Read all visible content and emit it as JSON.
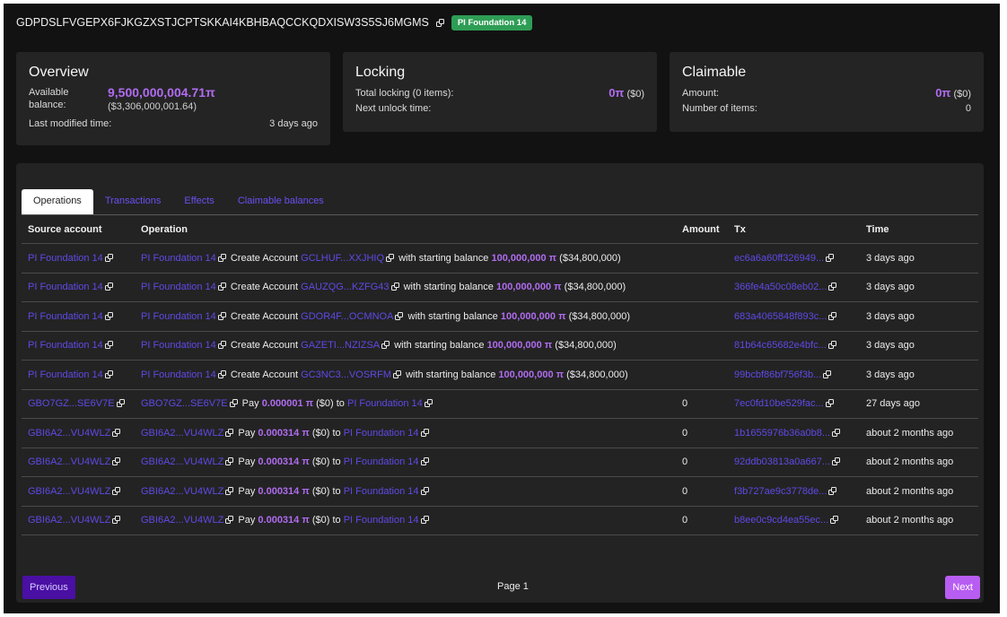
{
  "header": {
    "address": "GDPDSLFVGEPX6FJKGZXSTJCPTSKKAI4KBHBAQCCKQDXISW3S5SJ6MGMS",
    "badge": "PI Foundation 14"
  },
  "overview": {
    "title": "Overview",
    "available_label_1": "Available",
    "available_label_2": "balance:",
    "balance": "9,500,000,004.71π",
    "balance_usd": "($3,306,000,001.64)",
    "last_modified_label": "Last modified time:",
    "last_modified_value": "3 days ago"
  },
  "locking": {
    "title": "Locking",
    "total_label": "Total locking (0 items):",
    "total_value": "0π",
    "total_usd": "($0)",
    "next_unlock_label": "Next unlock time:"
  },
  "claimable": {
    "title": "Claimable",
    "amount_label": "Amount:",
    "amount_value": "0π",
    "amount_usd": "($0)",
    "items_label": "Number of items:",
    "items_value": "0"
  },
  "tabs": [
    "Operations",
    "Transactions",
    "Effects",
    "Claimable balances"
  ],
  "columns": [
    "Source account",
    "Operation",
    "Amount",
    "Tx",
    "Time"
  ],
  "text": {
    "create": "Create Account",
    "with_balance": "with starting balance",
    "pay": "Pay",
    "to": "to"
  },
  "rows": [
    {
      "source": "PI Foundation 14",
      "op_from": "PI Foundation 14",
      "type": "create",
      "target": "GCLHUF...XXJHIQ",
      "pi": "100,000,000 π",
      "usd": "($34,800,000)",
      "amount": "",
      "tx": "ec6a6a60ff326949...",
      "time": "3 days ago"
    },
    {
      "source": "PI Foundation 14",
      "op_from": "PI Foundation 14",
      "type": "create",
      "target": "GAUZQG...KZFG43",
      "pi": "100,000,000 π",
      "usd": "($34,800,000)",
      "amount": "",
      "tx": "366fe4a50c08eb02...",
      "time": "3 days ago"
    },
    {
      "source": "PI Foundation 14",
      "op_from": "PI Foundation 14",
      "type": "create",
      "target": "GDOR4F...OCMNOA",
      "pi": "100,000,000 π",
      "usd": "($34,800,000)",
      "amount": "",
      "tx": "683a4065848f893c...",
      "time": "3 days ago"
    },
    {
      "source": "PI Foundation 14",
      "op_from": "PI Foundation 14",
      "type": "create",
      "target": "GAZETI...NZIZSA",
      "pi": "100,000,000 π",
      "usd": "($34,800,000)",
      "amount": "",
      "tx": "81b64c65682e4bfc...",
      "time": "3 days ago"
    },
    {
      "source": "PI Foundation 14",
      "op_from": "PI Foundation 14",
      "type": "create",
      "target": "GC3NC3...VOSRFM",
      "pi": "100,000,000 π",
      "usd": "($34,800,000)",
      "amount": "",
      "tx": "99bcbf86bf756f3b...",
      "time": "3 days ago"
    },
    {
      "source": "GBO7GZ...SE6V7E",
      "op_from": "GBO7GZ...SE6V7E",
      "type": "pay",
      "target": "PI Foundation 14",
      "pi": "0.000001 π",
      "usd": "($0)",
      "amount": "0",
      "tx": "7ec0fd10be529fac...",
      "time": "27 days ago"
    },
    {
      "source": "GBI6A2...VU4WLZ",
      "op_from": "GBI6A2...VU4WLZ",
      "type": "pay",
      "target": "PI Foundation 14",
      "pi": "0.000314 π",
      "usd": "($0)",
      "amount": "0",
      "tx": "1b1655976b36a0b8...",
      "time": "about 2 months ago"
    },
    {
      "source": "GBI6A2...VU4WLZ",
      "op_from": "GBI6A2...VU4WLZ",
      "type": "pay",
      "target": "PI Foundation 14",
      "pi": "0.000314 π",
      "usd": "($0)",
      "amount": "0",
      "tx": "92ddb03813a0a667...",
      "time": "about 2 months ago"
    },
    {
      "source": "GBI6A2...VU4WLZ",
      "op_from": "GBI6A2...VU4WLZ",
      "type": "pay",
      "target": "PI Foundation 14",
      "pi": "0.000314 π",
      "usd": "($0)",
      "amount": "0",
      "tx": "f3b727ae9c3778de...",
      "time": "about 2 months ago"
    },
    {
      "source": "GBI6A2...VU4WLZ",
      "op_from": "GBI6A2...VU4WLZ",
      "type": "pay",
      "target": "PI Foundation 14",
      "pi": "0.000314 π",
      "usd": "($0)",
      "amount": "0",
      "tx": "b8ee0c9cd4ea55ec...",
      "time": "about 2 months ago"
    }
  ],
  "pagination": {
    "prev": "Previous",
    "page": "Page 1",
    "next": "Next"
  }
}
